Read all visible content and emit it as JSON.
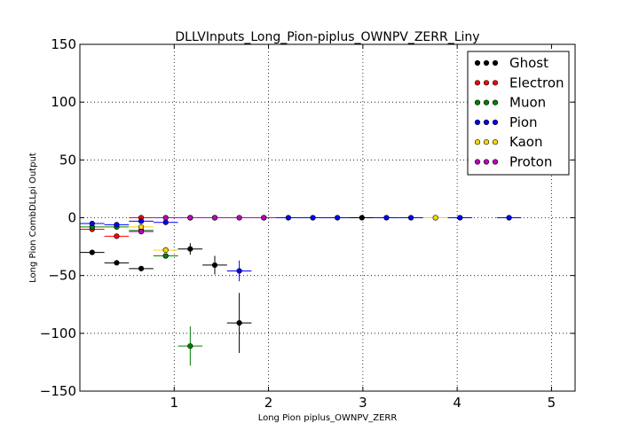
{
  "chart_data": {
    "type": "scatter",
    "title": "DLLVInputs_Long_Pion-piplus_OWNPV_ZERR_Liny",
    "xlabel": "Long Pion piplus_OWNPV_ZERR",
    "ylabel": "Long Pion CombDLLpi Output",
    "xlim": [
      0,
      5.25
    ],
    "ylim": [
      -150,
      150
    ],
    "xticks": [
      1,
      2,
      3,
      4,
      5
    ],
    "yticks": [
      -150,
      -100,
      -50,
      0,
      50,
      100,
      150
    ],
    "xtick_labels": [
      "1",
      "2",
      "3",
      "4",
      "5"
    ],
    "ytick_labels": [
      "−150",
      "−100",
      "−50",
      "0",
      "50",
      "100",
      "150"
    ],
    "grid": true,
    "legend_position": "top-right",
    "series": [
      {
        "name": "Ghost",
        "color": "#000000",
        "points": [
          {
            "x": 0.13,
            "y": -30,
            "xerr": 0.13,
            "yerr": 0
          },
          {
            "x": 0.39,
            "y": -39,
            "xerr": 0.13,
            "yerr": 0
          },
          {
            "x": 0.65,
            "y": -44,
            "xerr": 0.13,
            "yerr": 0
          },
          {
            "x": 0.91,
            "y": -33,
            "xerr": 0.13,
            "yerr": 2
          },
          {
            "x": 1.17,
            "y": -27,
            "xerr": 0.13,
            "yerr": 5
          },
          {
            "x": 1.43,
            "y": -41,
            "xerr": 0.13,
            "yerr": 8
          },
          {
            "x": 1.69,
            "y": -91,
            "xerr": 0.13,
            "yerr": 26
          },
          {
            "x": 2.99,
            "y": 0,
            "xerr": 0.13,
            "yerr": 0
          }
        ]
      },
      {
        "name": "Electron",
        "color": "#ff0000",
        "points": [
          {
            "x": 0.13,
            "y": -10,
            "xerr": 0.13,
            "yerr": 0
          },
          {
            "x": 0.39,
            "y": -16,
            "xerr": 0.13,
            "yerr": 2
          },
          {
            "x": 0.65,
            "y": 0,
            "xerr": 0.13,
            "yerr": 0
          }
        ]
      },
      {
        "name": "Muon",
        "color": "#008000",
        "points": [
          {
            "x": 0.13,
            "y": -8,
            "xerr": 0.13,
            "yerr": 0
          },
          {
            "x": 0.39,
            "y": -8,
            "xerr": 0.13,
            "yerr": 0
          },
          {
            "x": 0.65,
            "y": -11,
            "xerr": 0.13,
            "yerr": 2
          },
          {
            "x": 0.91,
            "y": -33,
            "xerr": 0.13,
            "yerr": 2
          },
          {
            "x": 1.17,
            "y": -111,
            "xerr": 0.13,
            "yerr": 17
          }
        ]
      },
      {
        "name": "Pion",
        "color": "#0000ff",
        "points": [
          {
            "x": 0.13,
            "y": -5,
            "xerr": 0.13,
            "yerr": 0
          },
          {
            "x": 0.39,
            "y": -6,
            "xerr": 0.13,
            "yerr": 0
          },
          {
            "x": 0.65,
            "y": -3,
            "xerr": 0.13,
            "yerr": 0
          },
          {
            "x": 0.91,
            "y": -4,
            "xerr": 0.13,
            "yerr": 0
          },
          {
            "x": 1.17,
            "y": 0,
            "xerr": 0.13,
            "yerr": 0
          },
          {
            "x": 1.43,
            "y": 0,
            "xerr": 0.13,
            "yerr": 0
          },
          {
            "x": 1.69,
            "y": -46,
            "xerr": 0.13,
            "yerr": 9
          },
          {
            "x": 1.95,
            "y": 0,
            "xerr": 0.13,
            "yerr": 0
          },
          {
            "x": 2.21,
            "y": 0,
            "xerr": 0.13,
            "yerr": 0
          },
          {
            "x": 2.47,
            "y": 0,
            "xerr": 0.13,
            "yerr": 0
          },
          {
            "x": 2.73,
            "y": 0,
            "xerr": 0.13,
            "yerr": 0
          },
          {
            "x": 3.25,
            "y": 0,
            "xerr": 0.13,
            "yerr": 0
          },
          {
            "x": 3.51,
            "y": 0,
            "xerr": 0.13,
            "yerr": 0
          },
          {
            "x": 4.03,
            "y": 0,
            "xerr": 0.13,
            "yerr": 0
          },
          {
            "x": 4.55,
            "y": 0,
            "xerr": 0.13,
            "yerr": 0
          }
        ]
      },
      {
        "name": "Kaon",
        "color": "#ffd700",
        "points": [
          {
            "x": 0.65,
            "y": -8,
            "xerr": 0.13,
            "yerr": 2
          },
          {
            "x": 0.91,
            "y": -28,
            "xerr": 0.13,
            "yerr": 3
          },
          {
            "x": 3.77,
            "y": 0,
            "xerr": 0.13,
            "yerr": 0
          }
        ]
      },
      {
        "name": "Proton",
        "color": "#bf00bf",
        "points": [
          {
            "x": 0.65,
            "y": -12,
            "xerr": 0.13,
            "yerr": 0
          },
          {
            "x": 0.91,
            "y": 0,
            "xerr": 0.13,
            "yerr": 0
          },
          {
            "x": 1.17,
            "y": 0,
            "xerr": 0.13,
            "yerr": 0
          },
          {
            "x": 1.43,
            "y": 0,
            "xerr": 0.13,
            "yerr": 0
          },
          {
            "x": 1.69,
            "y": 0,
            "xerr": 0.13,
            "yerr": 0
          },
          {
            "x": 1.95,
            "y": 0,
            "xerr": 0.13,
            "yerr": 0
          }
        ]
      }
    ]
  }
}
